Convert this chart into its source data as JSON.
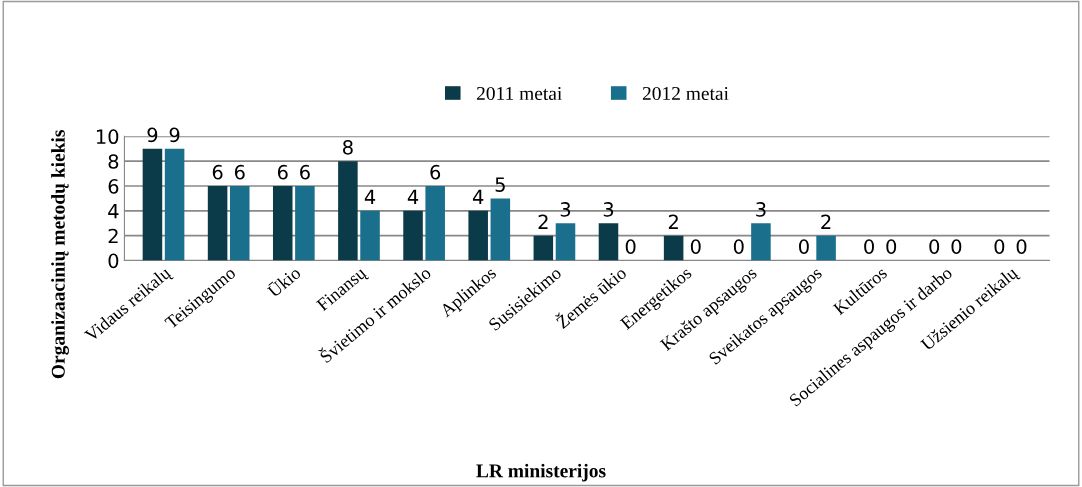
{
  "chart_data": {
    "type": "bar",
    "xlabel": "LR ministerijos",
    "ylabel": "Organizaacinių metodų kiekis",
    "categories": [
      "Vidaus reikalų",
      "Teisingumo",
      "Ūkio",
      "Finansų",
      "Švietimo ir mokslo",
      "Aplinkos",
      "Susisiekimo",
      "Žemės ūkio",
      "Energetikos",
      "Krašto apsaugos",
      "Sveikatos apsaugos",
      "Kultūros",
      "Socialines aspaugos ir darbo",
      "Užsienio reikalų"
    ],
    "series": [
      {
        "name": "2011 metai",
        "color": "#0b3a48",
        "values": [
          9,
          6,
          6,
          8,
          4,
          4,
          2,
          3,
          2,
          0,
          0,
          0,
          0,
          0
        ]
      },
      {
        "name": "2012 metai",
        "color": "#1a6f8c",
        "values": [
          9,
          6,
          6,
          4,
          6,
          5,
          3,
          0,
          0,
          3,
          2,
          0,
          0,
          0
        ]
      }
    ],
    "ylim": [
      0,
      10
    ],
    "yticks": [
      0,
      2,
      4,
      6,
      8,
      10
    ],
    "grid": "y",
    "legend": "top",
    "data_labels": true
  }
}
